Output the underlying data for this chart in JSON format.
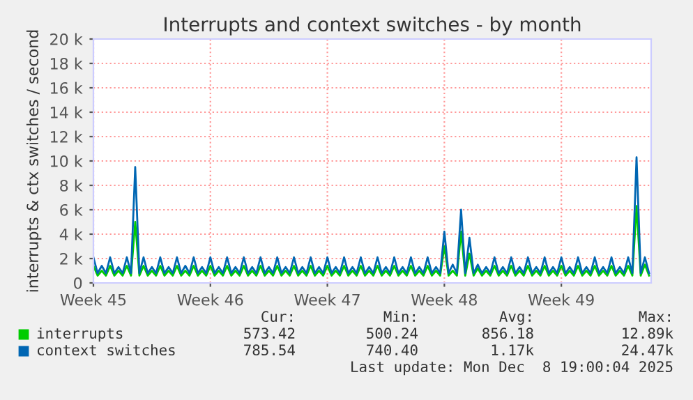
{
  "chart_data": {
    "type": "line",
    "title": "Interrupts and context switches - by month",
    "ylabel": "interrupts & ctx switches / second",
    "categories": [
      "Week 45",
      null,
      null,
      null,
      null,
      null,
      null,
      null,
      null,
      null,
      null,
      null,
      null,
      null,
      null,
      null,
      null,
      null,
      null,
      null,
      null,
      null,
      null,
      null,
      null,
      null,
      null,
      null,
      "Week 46",
      null,
      null,
      null,
      null,
      null,
      null,
      null,
      null,
      null,
      null,
      null,
      null,
      null,
      null,
      null,
      null,
      null,
      null,
      null,
      null,
      null,
      null,
      null,
      null,
      null,
      null,
      null,
      "Week 47",
      null,
      null,
      null,
      null,
      null,
      null,
      null,
      null,
      null,
      null,
      null,
      null,
      null,
      null,
      null,
      null,
      null,
      null,
      null,
      null,
      null,
      null,
      null,
      null,
      null,
      null,
      null,
      "Week 48",
      null,
      null,
      null,
      null,
      null,
      null,
      null,
      null,
      null,
      null,
      null,
      null,
      null,
      null,
      null,
      null,
      null,
      null,
      null,
      null,
      null,
      null,
      null,
      null,
      null,
      null,
      null,
      "Week 49",
      null,
      null,
      null,
      null,
      null,
      null,
      null,
      null,
      null,
      null,
      null,
      null,
      null,
      null,
      null,
      null,
      null,
      null,
      null,
      null,
      null
    ],
    "series": [
      {
        "name": "interrupts",
        "color": "#00cc00",
        "values": [
          1400,
          600,
          1000,
          600,
          1400,
          600,
          1000,
          600,
          1400,
          600,
          5000,
          600,
          1400,
          600,
          1000,
          600,
          1400,
          600,
          1000,
          600,
          1400,
          600,
          1000,
          600,
          1400,
          600,
          1000,
          600,
          1400,
          600,
          1000,
          600,
          1400,
          600,
          1000,
          600,
          1400,
          600,
          1000,
          600,
          1400,
          600,
          1000,
          600,
          1400,
          600,
          1000,
          600,
          1400,
          600,
          1000,
          600,
          1400,
          600,
          1000,
          600,
          1400,
          600,
          1000,
          600,
          1400,
          600,
          1000,
          600,
          1400,
          600,
          1000,
          600,
          1400,
          600,
          1000,
          600,
          1400,
          600,
          1000,
          600,
          1400,
          600,
          1000,
          600,
          1400,
          600,
          1000,
          600,
          3000,
          600,
          1000,
          600,
          4200,
          600,
          2400,
          600,
          1200,
          600,
          1000,
          600,
          1400,
          600,
          1000,
          600,
          1400,
          600,
          1000,
          600,
          1400,
          600,
          1000,
          600,
          1400,
          600,
          1000,
          600,
          1400,
          600,
          1000,
          600,
          1400,
          600,
          1000,
          600,
          1400,
          600,
          1000,
          600,
          1400,
          600,
          1000,
          600,
          1400,
          600,
          6300,
          600,
          1500,
          600
        ]
      },
      {
        "name": "context switches",
        "color": "#0066b3",
        "values": [
          2100,
          800,
          1400,
          800,
          2100,
          800,
          1300,
          800,
          2100,
          800,
          9500,
          800,
          2100,
          800,
          1300,
          800,
          2100,
          800,
          1300,
          800,
          2100,
          800,
          1400,
          800,
          2100,
          800,
          1300,
          800,
          2100,
          800,
          1300,
          800,
          2100,
          800,
          1300,
          800,
          2100,
          800,
          1300,
          800,
          2100,
          800,
          1300,
          800,
          2100,
          800,
          1300,
          800,
          2100,
          800,
          1300,
          800,
          2100,
          800,
          1300,
          800,
          2100,
          800,
          1300,
          800,
          2100,
          800,
          1300,
          800,
          2100,
          800,
          1300,
          800,
          2100,
          800,
          1300,
          800,
          2100,
          800,
          1300,
          800,
          2100,
          800,
          1300,
          800,
          2100,
          800,
          1300,
          800,
          4200,
          800,
          1500,
          800,
          6000,
          800,
          3700,
          800,
          1500,
          800,
          1300,
          800,
          2100,
          800,
          1300,
          800,
          2100,
          800,
          1300,
          800,
          2100,
          800,
          1300,
          800,
          2100,
          800,
          1300,
          800,
          2100,
          800,
          1300,
          800,
          2100,
          800,
          1300,
          800,
          2100,
          800,
          1300,
          800,
          2100,
          800,
          1300,
          800,
          2100,
          800,
          10300,
          800,
          2100,
          800
        ]
      }
    ],
    "ylim": [
      0,
      20000
    ],
    "yticks": [
      0,
      {
        "value": 2000,
        "label": "2 k"
      },
      {
        "value": 4000,
        "label": "4 k"
      },
      {
        "value": 6000,
        "label": "6 k"
      },
      {
        "value": 8000,
        "label": "8 k"
      },
      {
        "value": 10000,
        "label": "10 k"
      },
      {
        "value": 12000,
        "label": "12 k"
      },
      {
        "value": 14000,
        "label": "14 k"
      },
      {
        "value": 16000,
        "label": "16 k"
      },
      {
        "value": 18000,
        "label": "18 k"
      },
      {
        "value": 20000,
        "label": "20 k"
      }
    ],
    "grid": true,
    "legend": "bottom left",
    "marker": "none",
    "line_style": "solid",
    "annotations": [
      "Cur:",
      "Min:",
      "Avg:",
      "Max:",
      "573.42",
      "500.24",
      "856.18",
      "12.89k",
      "785.54",
      "740.40",
      "1.17k",
      "24.47k",
      "Last update: Mon Dec  8 19:00:04 2025"
    ]
  }
}
